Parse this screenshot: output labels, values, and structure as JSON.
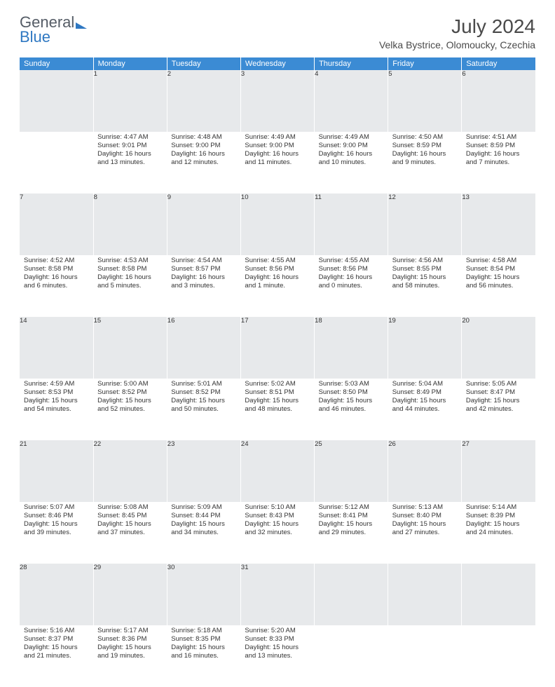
{
  "logo": {
    "text_general": "General",
    "text_blue": "Blue"
  },
  "title": "July 2024",
  "location": "Velka Bystrice, Olomoucky, Czechia",
  "colors": {
    "header_bg": "#3b8bd4",
    "header_text": "#ffffff",
    "daynum_bg": "#e7e9eb",
    "daynum_text": "#5a5f66",
    "body_text": "#333333",
    "logo_general": "#555c66",
    "logo_blue": "#2f78c2",
    "page_bg": "#ffffff"
  },
  "typography": {
    "title_fontsize": 28,
    "location_fontsize": 14,
    "weekday_fontsize": 11,
    "daynum_fontsize": 11,
    "cell_fontsize": 9.5,
    "font_family": "Arial"
  },
  "weekdays": [
    "Sunday",
    "Monday",
    "Tuesday",
    "Wednesday",
    "Thursday",
    "Friday",
    "Saturday"
  ],
  "weeks": [
    [
      {
        "num": "",
        "sunrise": "",
        "sunset": "",
        "daylight": ""
      },
      {
        "num": "1",
        "sunrise": "Sunrise: 4:47 AM",
        "sunset": "Sunset: 9:01 PM",
        "daylight": "Daylight: 16 hours and 13 minutes."
      },
      {
        "num": "2",
        "sunrise": "Sunrise: 4:48 AM",
        "sunset": "Sunset: 9:00 PM",
        "daylight": "Daylight: 16 hours and 12 minutes."
      },
      {
        "num": "3",
        "sunrise": "Sunrise: 4:49 AM",
        "sunset": "Sunset: 9:00 PM",
        "daylight": "Daylight: 16 hours and 11 minutes."
      },
      {
        "num": "4",
        "sunrise": "Sunrise: 4:49 AM",
        "sunset": "Sunset: 9:00 PM",
        "daylight": "Daylight: 16 hours and 10 minutes."
      },
      {
        "num": "5",
        "sunrise": "Sunrise: 4:50 AM",
        "sunset": "Sunset: 8:59 PM",
        "daylight": "Daylight: 16 hours and 9 minutes."
      },
      {
        "num": "6",
        "sunrise": "Sunrise: 4:51 AM",
        "sunset": "Sunset: 8:59 PM",
        "daylight": "Daylight: 16 hours and 7 minutes."
      }
    ],
    [
      {
        "num": "7",
        "sunrise": "Sunrise: 4:52 AM",
        "sunset": "Sunset: 8:58 PM",
        "daylight": "Daylight: 16 hours and 6 minutes."
      },
      {
        "num": "8",
        "sunrise": "Sunrise: 4:53 AM",
        "sunset": "Sunset: 8:58 PM",
        "daylight": "Daylight: 16 hours and 5 minutes."
      },
      {
        "num": "9",
        "sunrise": "Sunrise: 4:54 AM",
        "sunset": "Sunset: 8:57 PM",
        "daylight": "Daylight: 16 hours and 3 minutes."
      },
      {
        "num": "10",
        "sunrise": "Sunrise: 4:55 AM",
        "sunset": "Sunset: 8:56 PM",
        "daylight": "Daylight: 16 hours and 1 minute."
      },
      {
        "num": "11",
        "sunrise": "Sunrise: 4:55 AM",
        "sunset": "Sunset: 8:56 PM",
        "daylight": "Daylight: 16 hours and 0 minutes."
      },
      {
        "num": "12",
        "sunrise": "Sunrise: 4:56 AM",
        "sunset": "Sunset: 8:55 PM",
        "daylight": "Daylight: 15 hours and 58 minutes."
      },
      {
        "num": "13",
        "sunrise": "Sunrise: 4:58 AM",
        "sunset": "Sunset: 8:54 PM",
        "daylight": "Daylight: 15 hours and 56 minutes."
      }
    ],
    [
      {
        "num": "14",
        "sunrise": "Sunrise: 4:59 AM",
        "sunset": "Sunset: 8:53 PM",
        "daylight": "Daylight: 15 hours and 54 minutes."
      },
      {
        "num": "15",
        "sunrise": "Sunrise: 5:00 AM",
        "sunset": "Sunset: 8:52 PM",
        "daylight": "Daylight: 15 hours and 52 minutes."
      },
      {
        "num": "16",
        "sunrise": "Sunrise: 5:01 AM",
        "sunset": "Sunset: 8:52 PM",
        "daylight": "Daylight: 15 hours and 50 minutes."
      },
      {
        "num": "17",
        "sunrise": "Sunrise: 5:02 AM",
        "sunset": "Sunset: 8:51 PM",
        "daylight": "Daylight: 15 hours and 48 minutes."
      },
      {
        "num": "18",
        "sunrise": "Sunrise: 5:03 AM",
        "sunset": "Sunset: 8:50 PM",
        "daylight": "Daylight: 15 hours and 46 minutes."
      },
      {
        "num": "19",
        "sunrise": "Sunrise: 5:04 AM",
        "sunset": "Sunset: 8:49 PM",
        "daylight": "Daylight: 15 hours and 44 minutes."
      },
      {
        "num": "20",
        "sunrise": "Sunrise: 5:05 AM",
        "sunset": "Sunset: 8:47 PM",
        "daylight": "Daylight: 15 hours and 42 minutes."
      }
    ],
    [
      {
        "num": "21",
        "sunrise": "Sunrise: 5:07 AM",
        "sunset": "Sunset: 8:46 PM",
        "daylight": "Daylight: 15 hours and 39 minutes."
      },
      {
        "num": "22",
        "sunrise": "Sunrise: 5:08 AM",
        "sunset": "Sunset: 8:45 PM",
        "daylight": "Daylight: 15 hours and 37 minutes."
      },
      {
        "num": "23",
        "sunrise": "Sunrise: 5:09 AM",
        "sunset": "Sunset: 8:44 PM",
        "daylight": "Daylight: 15 hours and 34 minutes."
      },
      {
        "num": "24",
        "sunrise": "Sunrise: 5:10 AM",
        "sunset": "Sunset: 8:43 PM",
        "daylight": "Daylight: 15 hours and 32 minutes."
      },
      {
        "num": "25",
        "sunrise": "Sunrise: 5:12 AM",
        "sunset": "Sunset: 8:41 PM",
        "daylight": "Daylight: 15 hours and 29 minutes."
      },
      {
        "num": "26",
        "sunrise": "Sunrise: 5:13 AM",
        "sunset": "Sunset: 8:40 PM",
        "daylight": "Daylight: 15 hours and 27 minutes."
      },
      {
        "num": "27",
        "sunrise": "Sunrise: 5:14 AM",
        "sunset": "Sunset: 8:39 PM",
        "daylight": "Daylight: 15 hours and 24 minutes."
      }
    ],
    [
      {
        "num": "28",
        "sunrise": "Sunrise: 5:16 AM",
        "sunset": "Sunset: 8:37 PM",
        "daylight": "Daylight: 15 hours and 21 minutes."
      },
      {
        "num": "29",
        "sunrise": "Sunrise: 5:17 AM",
        "sunset": "Sunset: 8:36 PM",
        "daylight": "Daylight: 15 hours and 19 minutes."
      },
      {
        "num": "30",
        "sunrise": "Sunrise: 5:18 AM",
        "sunset": "Sunset: 8:35 PM",
        "daylight": "Daylight: 15 hours and 16 minutes."
      },
      {
        "num": "31",
        "sunrise": "Sunrise: 5:20 AM",
        "sunset": "Sunset: 8:33 PM",
        "daylight": "Daylight: 15 hours and 13 minutes."
      },
      {
        "num": "",
        "sunrise": "",
        "sunset": "",
        "daylight": ""
      },
      {
        "num": "",
        "sunrise": "",
        "sunset": "",
        "daylight": ""
      },
      {
        "num": "",
        "sunrise": "",
        "sunset": "",
        "daylight": ""
      }
    ]
  ]
}
